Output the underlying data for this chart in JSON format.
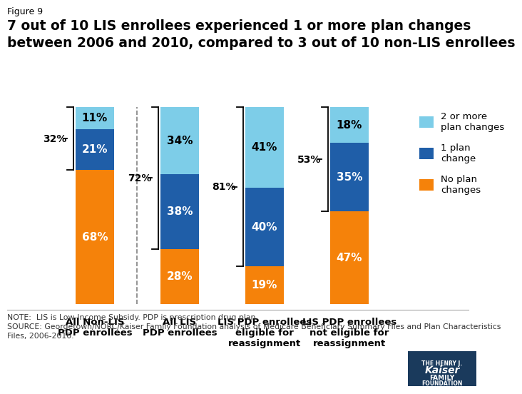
{
  "categories": [
    "All Non-LIS\nPDP enrollees",
    "All LIS\nPDP enrollees",
    "LIS PDP enrollees\neligible for\nreassignment",
    "LIS PDP enrollees\nnot eligible for\nreassignment"
  ],
  "no_change": [
    68,
    28,
    19,
    47
  ],
  "one_change": [
    21,
    38,
    40,
    35
  ],
  "two_more_change": [
    11,
    34,
    41,
    18
  ],
  "color_no": "#F5820A",
  "color_one": "#1F5EA8",
  "color_two": "#7DCDE8",
  "brace_pcts": [
    "32%",
    "72%",
    "81%",
    "53%"
  ],
  "figure_label": "Figure 9",
  "title": "7 out of 10 LIS enrollees experienced 1 or more plan changes\nbetween 2006 and 2010, compared to 3 out of 10 non-LIS enrollees",
  "legend_labels": [
    "2 or more\nplan changes",
    "1 plan\nchange",
    "No plan\nchanges"
  ],
  "note": "NOTE:  LIS is Low-Income Subsidy. PDP is prescription drug plan.\nSOURCE: Georgetown/NORC/Kaiser Family Foundation analysis of Medicare Beneficiary Summary Files and Plan Characteristics\nFiles, 2006-2010.",
  "bar_width": 0.45
}
